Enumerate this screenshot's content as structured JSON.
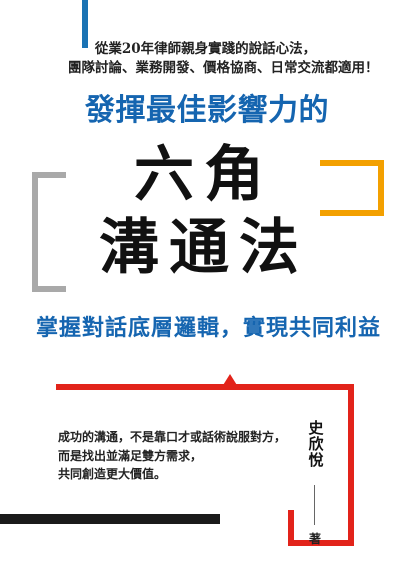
{
  "colors": {
    "blue": "#1a73b4",
    "orange": "#f3a000",
    "gray": "#a9a9a9",
    "red": "#e2231a",
    "black": "#1a1a1a",
    "title_blue": "#1565b0"
  },
  "cover": {
    "tagline_lines": [
      "從業20年律師親身實踐的說話心法，",
      "團隊討論、業務開發、價格協商、日常交流都適用！"
    ],
    "pretitle": "發揮最佳影響力的",
    "title_lines": [
      "六角",
      "溝通法"
    ],
    "subtitle": "掌握對話底層邏輯，實現共同利益",
    "blurb_lines": [
      "成功的溝通，不是靠口才或話術說服對方，",
      "而是找出並滿足雙方需求，",
      "共同創造更大價值。"
    ],
    "author": "史欣悅",
    "author_suffix": "著"
  }
}
